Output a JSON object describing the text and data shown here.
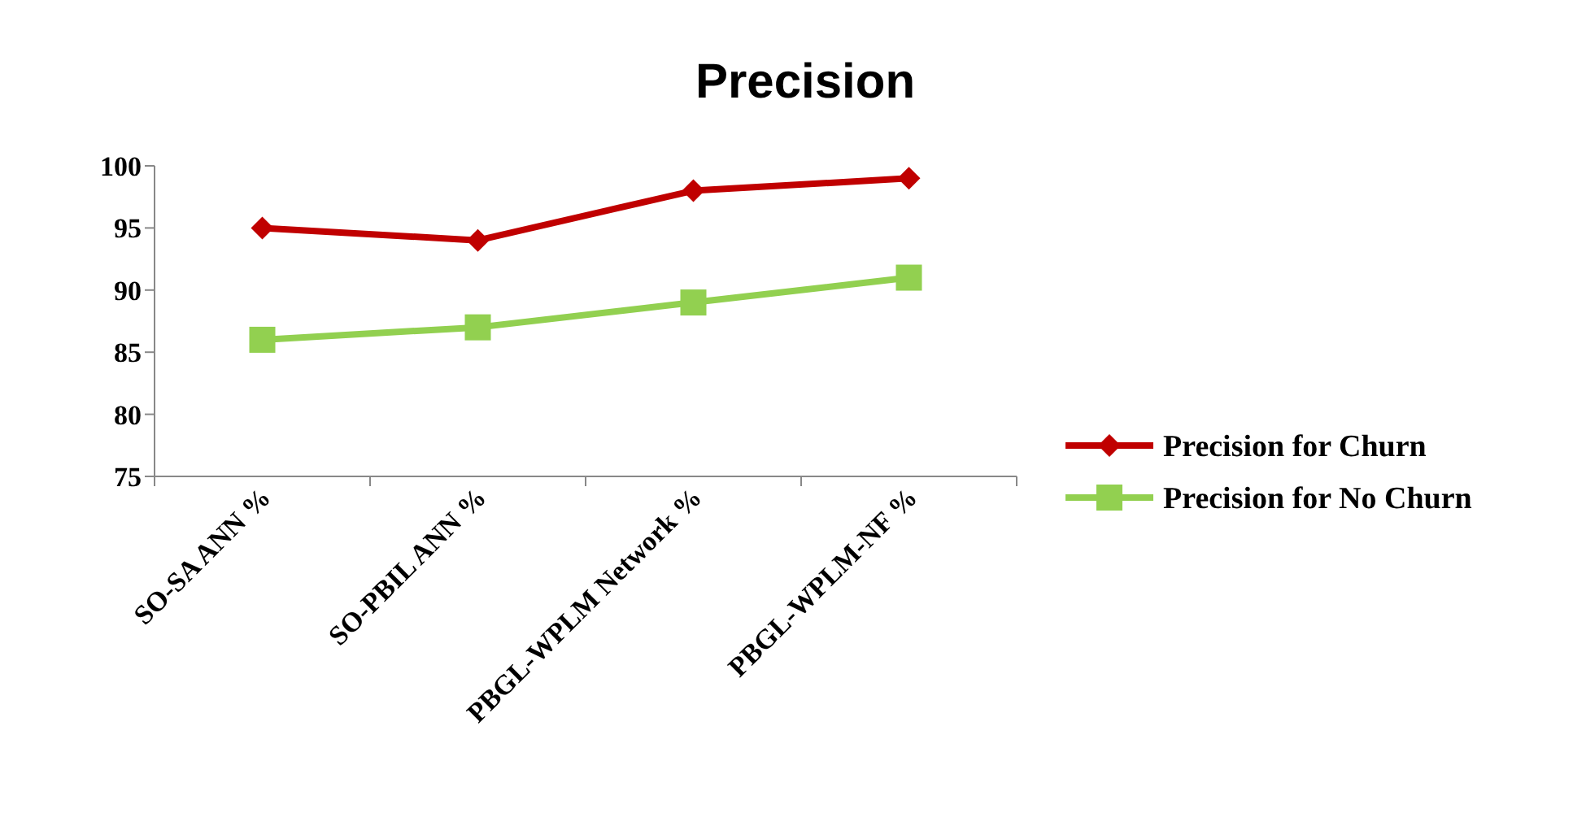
{
  "chart_data": {
    "type": "line",
    "title": "Precision",
    "categories": [
      "SO-SA ANN %",
      "SO-PBIL ANN %",
      "PBGL-WPLM Network %",
      "PBGL-WPLM-NF %"
    ],
    "series": [
      {
        "name": "Precision for Churn",
        "color": "#c00000",
        "marker": "diamond",
        "values": [
          95,
          94,
          98,
          99
        ]
      },
      {
        "name": "Precision for No Churn",
        "color": "#92d050",
        "marker": "square",
        "values": [
          86,
          87,
          89,
          91
        ]
      }
    ],
    "ylim": [
      75,
      100
    ],
    "yticks": [
      75,
      80,
      85,
      90,
      95,
      100
    ],
    "legend": "right",
    "line_style": "solid"
  }
}
